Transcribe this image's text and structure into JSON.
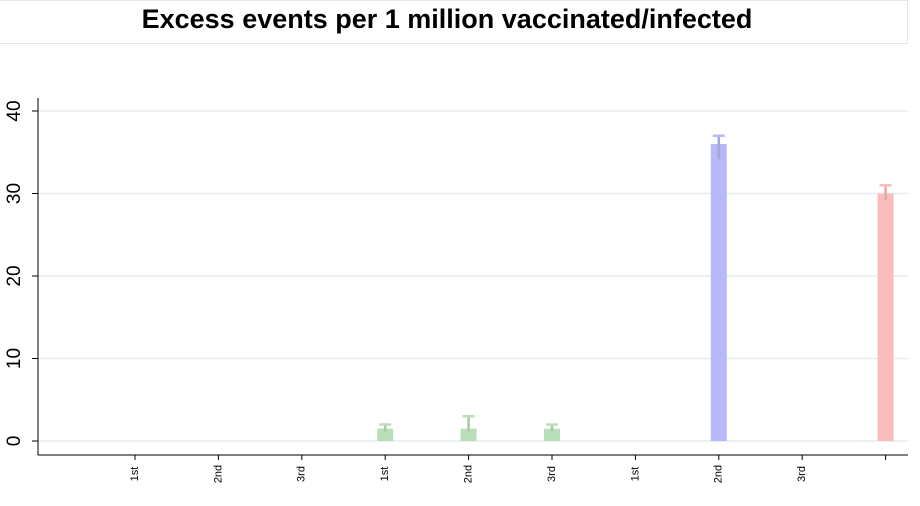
{
  "chart_data": {
    "type": "bar",
    "title": "Excess events per 1 million vaccinated/infected",
    "xlabel": "",
    "ylabel": "",
    "ylim": [
      0,
      40
    ],
    "yticks": [
      "0",
      "10",
      "20",
      "30",
      "40"
    ],
    "categories": [
      "1st",
      "2nd",
      "3rd",
      "1st",
      "2nd",
      "3rd",
      "1st",
      "2nd",
      "3rd",
      ""
    ],
    "grid": true,
    "bars": [
      {
        "category_index": 3,
        "value": 1.5,
        "error_low": 1,
        "error_high": 2,
        "color": "#b9dfb9"
      },
      {
        "category_index": 4,
        "value": 1.5,
        "error_low": 1,
        "error_high": 3,
        "color": "#b9dfb9"
      },
      {
        "category_index": 5,
        "value": 1.5,
        "error_low": 1,
        "error_high": 2,
        "color": "#b9dfb9"
      },
      {
        "category_index": 7,
        "value": 36,
        "error_low": 34,
        "error_high": 37,
        "color": "#b7b9f7"
      },
      {
        "category_index": 9,
        "value": 30,
        "error_low": 29,
        "error_high": 31,
        "color": "#fbbcbc"
      }
    ]
  }
}
